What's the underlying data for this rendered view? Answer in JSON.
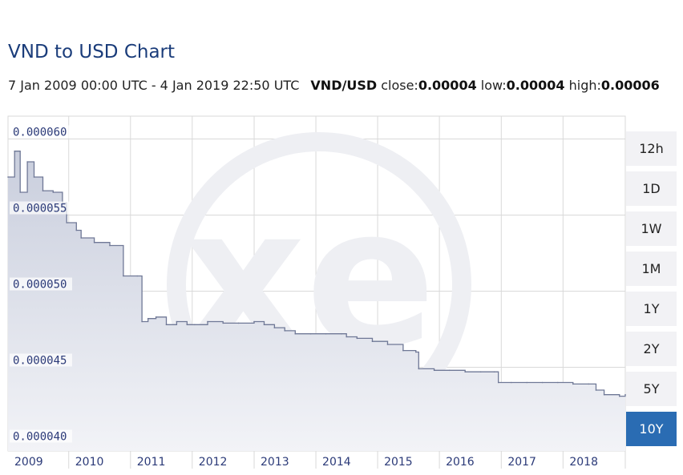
{
  "header": {
    "title": "VND to USD Chart",
    "date_range": "7 Jan 2009 00:00 UTC - 4 Jan 2019 22:50 UTC",
    "pair": "VND/USD",
    "close_label": "close:",
    "close_value": "0.00004",
    "low_label": "low:",
    "low_value": "0.00004",
    "high_label": "high:",
    "high_value": "0.00006"
  },
  "range_buttons": [
    {
      "label": "12h",
      "active": false
    },
    {
      "label": "1D",
      "active": false
    },
    {
      "label": "1W",
      "active": false
    },
    {
      "label": "1M",
      "active": false
    },
    {
      "label": "1Y",
      "active": false
    },
    {
      "label": "2Y",
      "active": false
    },
    {
      "label": "5Y",
      "active": false
    },
    {
      "label": "10Y",
      "active": true
    }
  ],
  "colors": {
    "line": "#6f7896",
    "fill_top": "#c9cedd",
    "fill_bottom": "#f2f3f7",
    "grid": "#d9d9d9",
    "tick_label": "#2b3a78",
    "active_button": "#2a6cb3",
    "watermark": "#eeeff3"
  },
  "chart_data": {
    "type": "area",
    "watermark": "xe",
    "x_tick_labels": [
      "2009",
      "2010",
      "2011",
      "2012",
      "2013",
      "2014",
      "2015",
      "2016",
      "2017",
      "2018"
    ],
    "y_tick_labels": [
      "0.000060",
      "0.000055",
      "0.000050",
      "0.000045",
      "0.000040"
    ],
    "y_ticks": [
      6e-05,
      5.5e-05,
      5e-05,
      4.5e-05,
      4e-05
    ],
    "ylim": [
      3.95e-05,
      6.15e-05
    ],
    "xlim": [
      "2009-01-07",
      "2019-01-04"
    ],
    "grid": true,
    "x": [
      "2009-01-07",
      "2009-02-15",
      "2009-03-20",
      "2009-05-01",
      "2009-06-10",
      "2009-08-01",
      "2009-10-01",
      "2009-11-25",
      "2009-12-20",
      "2010-02-15",
      "2010-03-15",
      "2010-06-01",
      "2010-09-01",
      "2010-11-20",
      "2011-02-10",
      "2011-03-10",
      "2011-04-15",
      "2011-06-01",
      "2011-08-01",
      "2011-10-01",
      "2011-12-01",
      "2012-01-15",
      "2012-04-01",
      "2012-07-01",
      "2012-10-01",
      "2013-01-01",
      "2013-03-01",
      "2013-05-01",
      "2013-07-01",
      "2013-09-01",
      "2013-12-01",
      "2014-03-01",
      "2014-06-01",
      "2014-07-01",
      "2014-09-01",
      "2014-12-01",
      "2015-03-01",
      "2015-06-01",
      "2015-08-15",
      "2015-09-01",
      "2015-12-01",
      "2016-03-01",
      "2016-06-01",
      "2016-09-01",
      "2016-11-20",
      "2016-12-15",
      "2017-03-01",
      "2017-06-01",
      "2017-09-01",
      "2017-12-01",
      "2018-03-01",
      "2018-06-01",
      "2018-07-15",
      "2018-09-01",
      "2018-12-01",
      "2019-01-04"
    ],
    "values": [
      5.75e-05,
      5.92e-05,
      5.65e-05,
      5.85e-05,
      5.75e-05,
      5.66e-05,
      5.65e-05,
      5.58e-05,
      5.45e-05,
      5.4e-05,
      5.35e-05,
      5.32e-05,
      5.3e-05,
      5.1e-05,
      5.1e-05,
      4.8e-05,
      4.82e-05,
      4.83e-05,
      4.78e-05,
      4.8e-05,
      4.78e-05,
      4.78e-05,
      4.8e-05,
      4.79e-05,
      4.79e-05,
      4.8e-05,
      4.78e-05,
      4.76e-05,
      4.74e-05,
      4.72e-05,
      4.72e-05,
      4.72e-05,
      4.72e-05,
      4.7e-05,
      4.69e-05,
      4.67e-05,
      4.65e-05,
      4.61e-05,
      4.6e-05,
      4.49e-05,
      4.48e-05,
      4.48e-05,
      4.47e-05,
      4.47e-05,
      4.47e-05,
      4.4e-05,
      4.4e-05,
      4.4e-05,
      4.4e-05,
      4.4e-05,
      4.39e-05,
      4.39e-05,
      4.35e-05,
      4.32e-05,
      4.31e-05,
      4.32e-05
    ]
  }
}
